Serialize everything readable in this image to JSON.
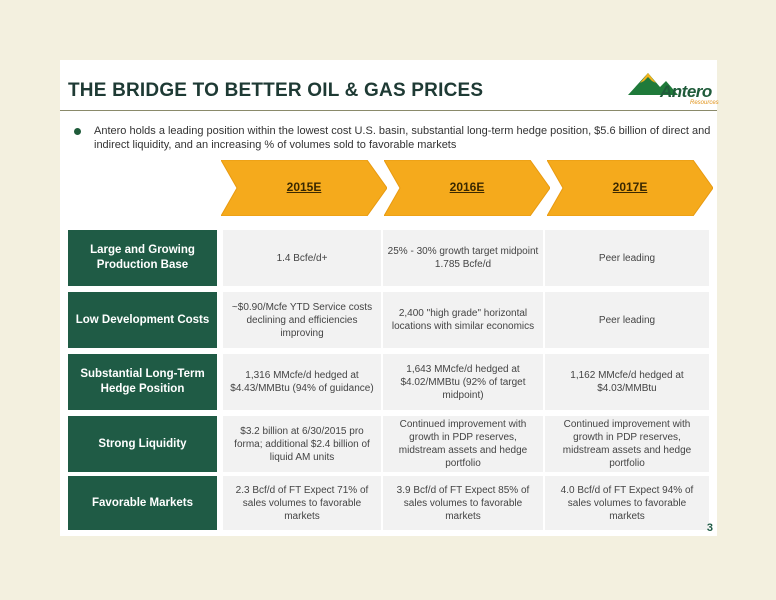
{
  "title": "THE BRIDGE TO BETTER OIL & GAS PRICES",
  "logo": {
    "name": "Antero",
    "sub": "Resources"
  },
  "bullet": "Antero holds a leading position within the lowest cost U.S. basin, substantial long-term hedge position, $5.6 billion of direct and indirect liquidity, and an increasing % of volumes sold to favorable markets",
  "years": [
    "2015E",
    "2016E",
    "2017E"
  ],
  "colors": {
    "accent": "#f5aa1c",
    "header_green": "#1f5b45",
    "cell_gray": "#f2f2f2"
  },
  "rows": [
    {
      "label": "Large and Growing Production Base",
      "cells": [
        "1.4 Bcfe/d+",
        "25% - 30% growth target midpoint 1.785 Bcfe/d",
        "Peer leading"
      ]
    },
    {
      "label": "Low Development Costs",
      "cells": [
        "~$0.90/Mcfe YTD Service costs declining and efficiencies improving",
        "2,400 \"high grade\" horizontal locations with similar economics",
        "Peer leading"
      ]
    },
    {
      "label": "Substantial Long-Term Hedge Position",
      "cells": [
        "1,316 MMcfe/d hedged at $4.43/MMBtu (94% of guidance)",
        "1,643 MMcfe/d hedged at $4.02/MMBtu (92% of target midpoint)",
        "1,162 MMcfe/d hedged at $4.03/MMBtu"
      ]
    },
    {
      "label": "Strong Liquidity",
      "cells": [
        "$3.2 billion at 6/30/2015 pro forma; additional $2.4 billion of liquid AM units",
        "Continued improvement with growth in PDP reserves, midstream assets and hedge portfolio",
        "Continued improvement with growth in PDP reserves, midstream assets and hedge portfolio"
      ]
    },
    {
      "label": "Favorable Markets",
      "cells": [
        "2.3 Bcf/d of FT Expect 71% of sales volumes to favorable markets",
        "3.9 Bcf/d of FT Expect 85% of sales volumes to favorable markets",
        "4.0 Bcf/d of FT Expect 94% of sales volumes to favorable markets"
      ]
    }
  ],
  "page_number": "3"
}
